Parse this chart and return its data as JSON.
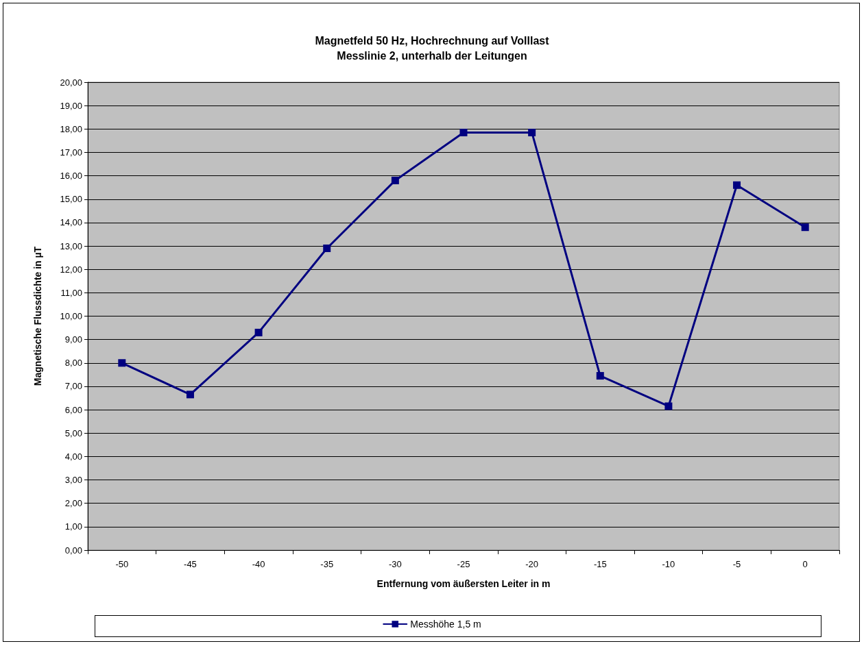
{
  "chart_data": {
    "type": "line",
    "title": "Magnetfeld 50 Hz, Hochrechnung auf Volllast",
    "subtitle": "Messlinie 2, unterhalb der Leitungen",
    "xlabel": "Entfernung vom äußersten Leiter in m",
    "ylabel": "Magnetische Flussdichte in µT",
    "categories": [
      "-50",
      "-45",
      "-40",
      "-35",
      "-30",
      "-25",
      "-20",
      "-15",
      "-10",
      "-5",
      "0"
    ],
    "series": [
      {
        "name": "Messhöhe 1,5 m",
        "color": "#000080",
        "values": [
          8.0,
          6.65,
          9.3,
          12.9,
          15.8,
          17.85,
          17.85,
          7.45,
          6.15,
          15.6,
          13.8
        ]
      }
    ],
    "ylim": [
      0,
      20
    ],
    "yticks": [
      {
        "value": 0,
        "label": "0,00"
      },
      {
        "value": 1,
        "label": "1,00"
      },
      {
        "value": 2,
        "label": "2,00"
      },
      {
        "value": 3,
        "label": "3,00"
      },
      {
        "value": 4,
        "label": "4,00"
      },
      {
        "value": 5,
        "label": "5,00"
      },
      {
        "value": 6,
        "label": "6,00"
      },
      {
        "value": 7,
        "label": "7,00"
      },
      {
        "value": 8,
        "label": "8,00"
      },
      {
        "value": 9,
        "label": "9,00"
      },
      {
        "value": 10,
        "label": "10,00"
      },
      {
        "value": 11,
        "label": "11,00"
      },
      {
        "value": 12,
        "label": "12,00"
      },
      {
        "value": 13,
        "label": "13,00"
      },
      {
        "value": 14,
        "label": "14,00"
      },
      {
        "value": 15,
        "label": "15,00"
      },
      {
        "value": 16,
        "label": "16,00"
      },
      {
        "value": 17,
        "label": "17,00"
      },
      {
        "value": 18,
        "label": "18,00"
      },
      {
        "value": 19,
        "label": "19,00"
      },
      {
        "value": 20,
        "label": "20,00"
      }
    ],
    "grid": "y",
    "legend": "bottom",
    "marker": "square",
    "line_style": "solid"
  }
}
